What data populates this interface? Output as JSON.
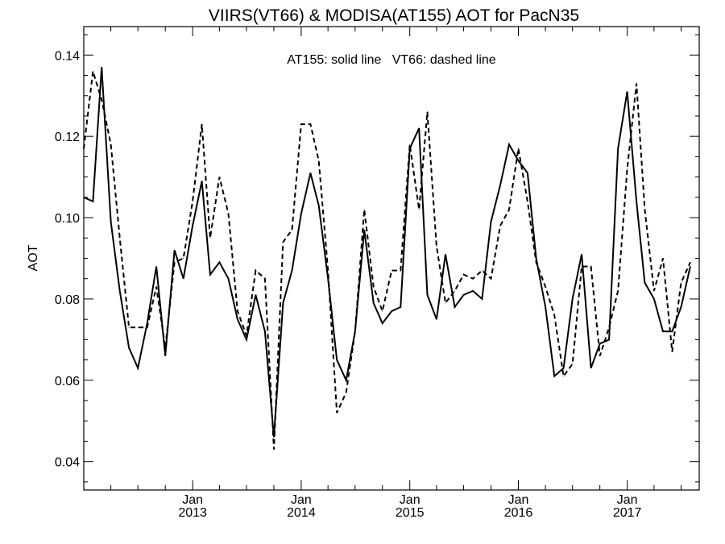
{
  "chart_data": {
    "type": "line",
    "title": "VIIRS(VT66) & MODISA(AT155)  AOT for PacN35",
    "ylabel": "AOT",
    "xlabel": "",
    "annotation": "AT155: solid line   VT66: dashed line",
    "x_type": "date",
    "xlim": [
      "2012-01-01",
      "2017-08-31"
    ],
    "ylim": [
      0.033,
      0.147
    ],
    "y_ticks": [
      {
        "value": 0.04,
        "label": "0.04"
      },
      {
        "value": 0.06,
        "label": "0.06"
      },
      {
        "value": 0.08,
        "label": "0.08"
      },
      {
        "value": 0.1,
        "label": "0.10"
      },
      {
        "value": 0.12,
        "label": "0.12"
      },
      {
        "value": 0.14,
        "label": "0.14"
      }
    ],
    "x_ticks": [
      {
        "date": "2013-01-01",
        "month": "Jan",
        "year": "2013"
      },
      {
        "date": "2014-01-01",
        "month": "Jan",
        "year": "2014"
      },
      {
        "date": "2015-01-01",
        "month": "Jan",
        "year": "2015"
      },
      {
        "date": "2016-01-01",
        "month": "Jan",
        "year": "2016"
      },
      {
        "date": "2017-01-01",
        "month": "Jan",
        "year": "2017"
      }
    ],
    "grid": false,
    "series": [
      {
        "name": "AT155",
        "style": "solid",
        "color": "#000000",
        "x": [
          "2012-01-01",
          "2012-02-01",
          "2012-03-01",
          "2012-04-01",
          "2012-05-01",
          "2012-06-01",
          "2012-07-01",
          "2012-08-01",
          "2012-09-01",
          "2012-10-01",
          "2012-11-01",
          "2012-12-01",
          "2013-01-01",
          "2013-02-01",
          "2013-03-01",
          "2013-04-01",
          "2013-05-01",
          "2013-06-01",
          "2013-07-01",
          "2013-08-01",
          "2013-09-01",
          "2013-10-01",
          "2013-11-01",
          "2013-12-01",
          "2014-01-01",
          "2014-02-01",
          "2014-03-01",
          "2014-04-01",
          "2014-05-01",
          "2014-06-01",
          "2014-07-01",
          "2014-08-01",
          "2014-09-01",
          "2014-10-01",
          "2014-11-01",
          "2014-12-01",
          "2015-01-01",
          "2015-02-01",
          "2015-03-01",
          "2015-04-01",
          "2015-05-01",
          "2015-06-01",
          "2015-07-01",
          "2015-08-01",
          "2015-09-01",
          "2015-10-01",
          "2015-11-01",
          "2015-12-01",
          "2016-01-01",
          "2016-02-01",
          "2016-03-01",
          "2016-04-01",
          "2016-05-01",
          "2016-06-01",
          "2016-07-01",
          "2016-08-01",
          "2016-09-01",
          "2016-10-01",
          "2016-11-01",
          "2016-12-01",
          "2017-01-01",
          "2017-02-01",
          "2017-03-01",
          "2017-04-01",
          "2017-05-01",
          "2017-06-01",
          "2017-07-01",
          "2017-08-01"
        ],
        "values": [
          0.105,
          0.104,
          0.137,
          0.099,
          0.082,
          0.068,
          0.063,
          0.074,
          0.088,
          0.066,
          0.092,
          0.085,
          0.098,
          0.109,
          0.086,
          0.089,
          0.085,
          0.075,
          0.07,
          0.081,
          0.072,
          0.046,
          0.079,
          0.087,
          0.101,
          0.111,
          0.103,
          0.085,
          0.065,
          0.06,
          0.072,
          0.097,
          0.079,
          0.074,
          0.077,
          0.078,
          0.117,
          0.122,
          0.081,
          0.075,
          0.091,
          0.078,
          0.081,
          0.082,
          0.08,
          0.099,
          0.108,
          0.118,
          0.114,
          0.111,
          0.09,
          0.078,
          0.061,
          0.063,
          0.08,
          0.091,
          0.063,
          0.069,
          0.07,
          0.117,
          0.131,
          0.104,
          0.084,
          0.08,
          0.072,
          0.072,
          0.078,
          0.088
        ]
      },
      {
        "name": "VT66",
        "style": "dashed",
        "color": "#000000",
        "x": [
          "2012-01-01",
          "2012-02-01",
          "2012-03-01",
          "2012-04-01",
          "2012-05-01",
          "2012-06-01",
          "2012-07-01",
          "2012-08-01",
          "2012-09-01",
          "2012-10-01",
          "2012-11-01",
          "2012-12-01",
          "2013-01-01",
          "2013-02-01",
          "2013-03-01",
          "2013-04-01",
          "2013-05-01",
          "2013-06-01",
          "2013-07-01",
          "2013-08-01",
          "2013-09-01",
          "2013-10-01",
          "2013-11-01",
          "2013-12-01",
          "2014-01-01",
          "2014-02-01",
          "2014-03-01",
          "2014-04-01",
          "2014-05-01",
          "2014-06-01",
          "2014-07-01",
          "2014-08-01",
          "2014-09-01",
          "2014-10-01",
          "2014-11-01",
          "2014-12-01",
          "2015-01-01",
          "2015-02-01",
          "2015-03-01",
          "2015-04-01",
          "2015-05-01",
          "2015-06-01",
          "2015-07-01",
          "2015-08-01",
          "2015-09-01",
          "2015-10-01",
          "2015-11-01",
          "2015-12-01",
          "2016-01-01",
          "2016-02-01",
          "2016-03-01",
          "2016-04-01",
          "2016-05-01",
          "2016-06-01",
          "2016-07-01",
          "2016-08-01",
          "2016-09-01",
          "2016-10-01",
          "2016-11-01",
          "2016-12-01",
          "2017-01-01",
          "2017-02-01",
          "2017-03-01",
          "2017-04-01",
          "2017-05-01",
          "2017-06-01",
          "2017-07-01",
          "2017-08-01"
        ],
        "values": [
          0.117,
          0.136,
          0.129,
          0.118,
          0.095,
          0.073,
          0.073,
          0.073,
          0.083,
          0.068,
          0.089,
          0.09,
          0.104,
          0.123,
          0.095,
          0.11,
          0.101,
          0.077,
          0.071,
          0.087,
          0.085,
          0.043,
          0.094,
          0.097,
          0.123,
          0.123,
          0.114,
          0.087,
          0.052,
          0.057,
          0.072,
          0.102,
          0.083,
          0.077,
          0.087,
          0.087,
          0.118,
          0.102,
          0.126,
          0.093,
          0.079,
          0.082,
          0.086,
          0.085,
          0.087,
          0.085,
          0.098,
          0.102,
          0.117,
          0.104,
          0.089,
          0.083,
          0.076,
          0.061,
          0.064,
          0.088,
          0.088,
          0.066,
          0.073,
          0.082,
          0.112,
          0.133,
          0.102,
          0.082,
          0.09,
          0.067,
          0.084,
          0.089
        ]
      }
    ]
  }
}
